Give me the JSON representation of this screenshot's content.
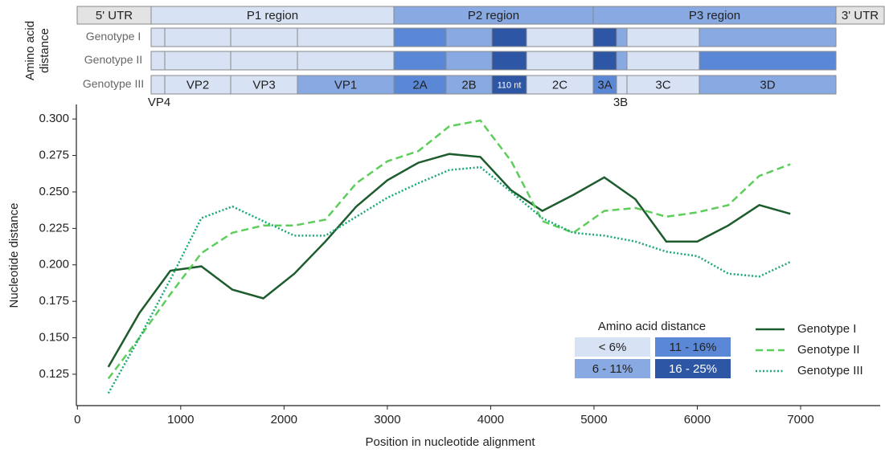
{
  "genome_map": {
    "axis_label": [
      "Amino acid",
      "distance"
    ],
    "regions": [
      {
        "label": "5' UTR",
        "color": "#e3e3e3"
      },
      {
        "label": "P1 region",
        "color": "#d7e2f5"
      },
      {
        "label": "P2 region",
        "color": "#88a9e1"
      },
      {
        "label": "P3 region",
        "color": "#88a9e1"
      },
      {
        "label": "3' UTR",
        "color": "#e3e3e3"
      }
    ],
    "segments": [
      "VP4",
      "VP2",
      "VP3",
      "VP1",
      "2A",
      "2B",
      "110 nt",
      "2C",
      "3A",
      "3B",
      "3C",
      "3D"
    ],
    "rows": [
      {
        "name": "Genotype I",
        "colors": [
          "#d7e2f5",
          "#d7e2f5",
          "#d7e2f5",
          "#d7e2f5",
          "#5b88d6",
          "#88a9e1",
          "#2d57a5",
          "#d7e2f5",
          "#2d57a5",
          "#88a9e1",
          "#d7e2f5",
          "#88a9e1"
        ]
      },
      {
        "name": "Genotype II",
        "colors": [
          "#d7e2f5",
          "#d7e2f5",
          "#d7e2f5",
          "#d7e2f5",
          "#5b88d6",
          "#88a9e1",
          "#2d57a5",
          "#d7e2f5",
          "#2d57a5",
          "#88a9e1",
          "#d7e2f5",
          "#5b88d6"
        ]
      },
      {
        "name": "Genotype III",
        "colors": [
          "#d7e2f5",
          "#d7e2f5",
          "#d7e2f5",
          "#88a9e1",
          "#5b88d6",
          "#88a9e1",
          "#2d57a5",
          "#d7e2f5",
          "#5b88d6",
          "#d7e2f5",
          "#d7e2f5",
          "#88a9e1"
        ]
      }
    ],
    "legend": {
      "title": "Amino acid distance",
      "levels": [
        {
          "label": "< 6%",
          "color": "#d7e2f5"
        },
        {
          "label": "6 - 11%",
          "color": "#88a9e1"
        },
        {
          "label": "11 - 16%",
          "color": "#5b88d6"
        },
        {
          "label": "16 - 25%",
          "color": "#2d57a5"
        }
      ]
    }
  },
  "chart_data": {
    "type": "line",
    "x_label": "Position in nucleotide alignment",
    "y_label": "Nucleotide distance",
    "x": [
      300,
      600,
      900,
      1200,
      1500,
      1800,
      2100,
      2400,
      2700,
      3000,
      3300,
      3600,
      3900,
      4200,
      4500,
      4800,
      5100,
      5400,
      5700,
      6000,
      6300,
      6600,
      6900
    ],
    "series": [
      {
        "name": "Genotype I",
        "color": "#1d5c2c",
        "dash": "solid",
        "values": [
          0.13,
          0.167,
          0.196,
          0.199,
          0.183,
          0.177,
          0.194,
          0.216,
          0.24,
          0.258,
          0.27,
          0.276,
          0.274,
          0.251,
          0.237,
          0.248,
          0.26,
          0.245,
          0.216,
          0.216,
          0.227,
          0.241,
          0.235
        ]
      },
      {
        "name": "Genotype II",
        "color": "#5fcd5c",
        "dash": "dashed",
        "values": [
          0.122,
          0.15,
          0.18,
          0.208,
          0.222,
          0.227,
          0.227,
          0.231,
          0.256,
          0.271,
          0.278,
          0.295,
          0.299,
          0.271,
          0.23,
          0.222,
          0.237,
          0.239,
          0.233,
          0.236,
          0.241,
          0.261,
          0.269
        ]
      },
      {
        "name": "Genotype III",
        "color": "#1aa874",
        "dash": "dotted",
        "values": [
          0.112,
          0.15,
          0.19,
          0.232,
          0.24,
          0.23,
          0.22,
          0.22,
          0.233,
          0.246,
          0.256,
          0.265,
          0.267,
          0.25,
          0.232,
          0.222,
          0.22,
          0.216,
          0.209,
          0.206,
          0.194,
          0.192,
          0.202
        ]
      }
    ],
    "xlim": [
      -10,
      7770
    ],
    "ylim": [
      0.1035,
      0.31
    ],
    "xticks": [
      0,
      1000,
      2000,
      3000,
      4000,
      5000,
      6000,
      7000
    ],
    "yticks": [
      {
        "value": 0.125,
        "label": "0.125"
      },
      {
        "value": 0.15,
        "label": "0.150"
      },
      {
        "value": 0.175,
        "label": "0.175"
      },
      {
        "value": 0.2,
        "label": "0.200"
      },
      {
        "value": 0.225,
        "label": "0.225"
      },
      {
        "value": 0.25,
        "label": "0.250"
      },
      {
        "value": 0.275,
        "label": "0.275"
      },
      {
        "value": 0.3,
        "label": "0.300"
      }
    ],
    "grid": false
  }
}
